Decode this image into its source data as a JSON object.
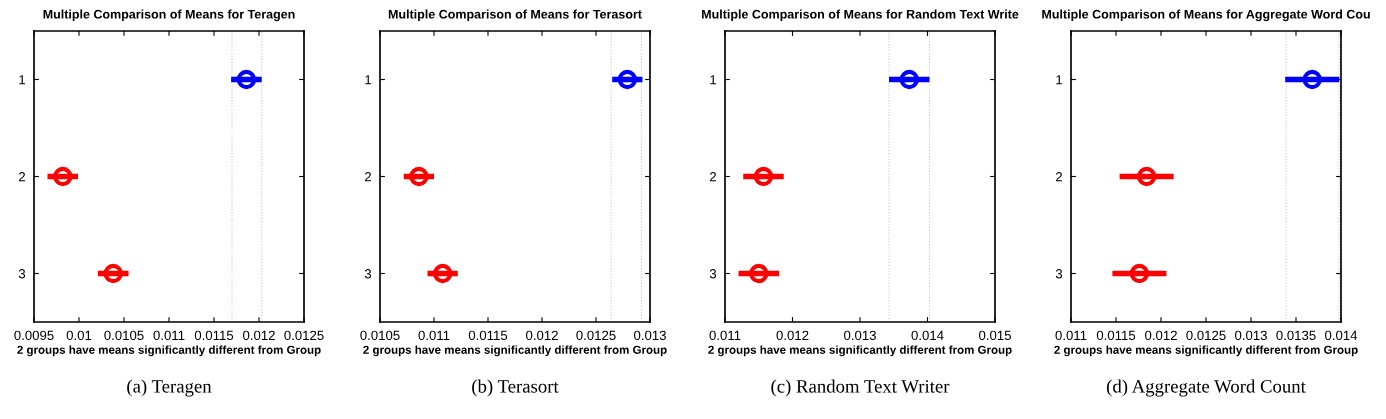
{
  "chart_data": [
    {
      "type": "scatter",
      "orientation": "horizontal",
      "title": "Multiple Comparison of Means for Teragen",
      "xlabel": "2 groups have means significantly different from Group",
      "categories": [
        "1",
        "2",
        "3"
      ],
      "marker": "circle",
      "grid": false,
      "series": [
        {
          "colors": [
            "#0000ff",
            "#ff0000",
            "#ff0000"
          ],
          "values": [
            0.01186,
            0.00982,
            0.01038
          ],
          "errors": [
            0.00017,
            0.00017,
            0.00017
          ]
        }
      ],
      "xlim": [
        0.0095,
        0.0125
      ],
      "xticks": [
        0.0095,
        0.01,
        0.0105,
        0.011,
        0.0115,
        0.012,
        0.0125
      ],
      "ref_lines": [
        {
          "axis": "x",
          "value": 0.0117,
          "color": "#c8c8c8",
          "line_style": "dotted"
        },
        {
          "axis": "x",
          "value": 0.01203,
          "color": "#c8c8c8",
          "line_style": "dotted"
        }
      ],
      "annotations": [
        "(a) Teragen"
      ]
    },
    {
      "type": "scatter",
      "orientation": "horizontal",
      "title": "Multiple Comparison of Means for Terasort",
      "xlabel": "2 groups have means significantly different from Group",
      "categories": [
        "1",
        "2",
        "3"
      ],
      "marker": "circle",
      "grid": false,
      "series": [
        {
          "colors": [
            "#0000ff",
            "#ff0000",
            "#ff0000"
          ],
          "values": [
            0.01279,
            0.01086,
            0.01108
          ],
          "errors": [
            0.00014,
            0.00014,
            0.00014
          ]
        }
      ],
      "xlim": [
        0.0105,
        0.013
      ],
      "xticks": [
        0.0105,
        0.011,
        0.0115,
        0.012,
        0.0125,
        0.013
      ],
      "ref_lines": [
        {
          "axis": "x",
          "value": 0.01264,
          "color": "#c8c8c8",
          "line_style": "dotted"
        },
        {
          "axis": "x",
          "value": 0.01292,
          "color": "#c8c8c8",
          "line_style": "dotted"
        }
      ],
      "annotations": [
        "(b) Terasort"
      ]
    },
    {
      "type": "scatter",
      "orientation": "horizontal",
      "title": "Multiple Comparison of Means for Random Text Write",
      "xlabel": "2 groups have means significantly different from Group",
      "categories": [
        "1",
        "2",
        "3"
      ],
      "marker": "circle",
      "grid": false,
      "series": [
        {
          "colors": [
            "#0000ff",
            "#ff0000",
            "#ff0000"
          ],
          "values": [
            0.01373,
            0.01157,
            0.0115
          ],
          "errors": [
            0.0003,
            0.0003,
            0.0003
          ]
        }
      ],
      "xlim": [
        0.011,
        0.015
      ],
      "xticks": [
        0.011,
        0.012,
        0.013,
        0.014,
        0.015
      ],
      "ref_lines": [
        {
          "axis": "x",
          "value": 0.01343,
          "color": "#c8c8c8",
          "line_style": "dotted"
        },
        {
          "axis": "x",
          "value": 0.01403,
          "color": "#c8c8c8",
          "line_style": "dotted"
        }
      ],
      "annotations": [
        "(c) Random Text Writer"
      ]
    },
    {
      "type": "scatter",
      "orientation": "horizontal",
      "title": "Multiple Comparison of Means for Aggregate Word Cou",
      "xlabel": "2 groups have means significantly different from Group",
      "categories": [
        "1",
        "2",
        "3"
      ],
      "marker": "circle",
      "grid": false,
      "series": [
        {
          "colors": [
            "#0000ff",
            "#ff0000",
            "#ff0000"
          ],
          "values": [
            0.01368,
            0.01184,
            0.01176
          ],
          "errors": [
            0.0003,
            0.0003,
            0.0003
          ]
        }
      ],
      "xlim": [
        0.011,
        0.014
      ],
      "xticks": [
        0.011,
        0.0115,
        0.012,
        0.0125,
        0.013,
        0.0135,
        0.014
      ],
      "ref_lines": [
        {
          "axis": "x",
          "value": 0.01339,
          "color": "#c8c8c8",
          "line_style": "dotted"
        },
        {
          "axis": "x",
          "value": 0.01398,
          "color": "#c8c8c8",
          "line_style": "dotted"
        }
      ],
      "annotations": [
        "(d) Aggregate Word Count"
      ]
    }
  ]
}
